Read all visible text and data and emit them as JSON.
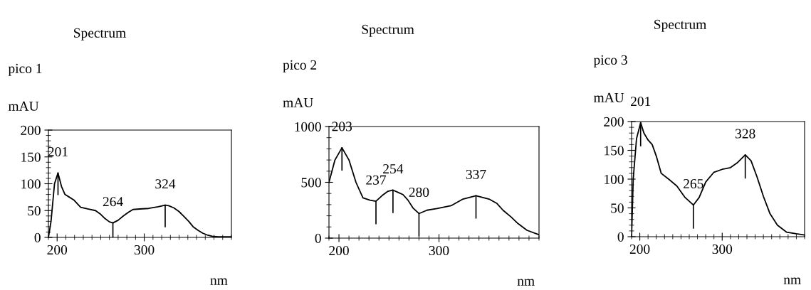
{
  "chart_data": [
    {
      "type": "line",
      "title": "Spectrum",
      "subtitle": "pico 1",
      "ylabel": "mAU",
      "xlabel": "nm",
      "xlim": [
        190,
        400
      ],
      "xticks": [
        200,
        300
      ],
      "ylim": [
        0,
        200
      ],
      "yticks": [
        0,
        50,
        100,
        150,
        200
      ],
      "grid": false,
      "legend": false,
      "marker": "none",
      "line_style": "solid",
      "series": [
        {
          "color": "#000000",
          "x": [
            190,
            193,
            197,
            201,
            205,
            209,
            214,
            219,
            227,
            235,
            244,
            250,
            255,
            260,
            264,
            270,
            276,
            282,
            287,
            295,
            305,
            316,
            324,
            328,
            334,
            340,
            345,
            351,
            356,
            362,
            367,
            373,
            378,
            385,
            400
          ],
          "values": [
            0,
            30,
            100,
            120,
            95,
            80,
            75,
            70,
            56,
            53,
            50,
            43,
            35,
            29,
            27,
            32,
            40,
            47,
            52,
            53,
            54,
            57,
            60,
            59,
            55,
            48,
            40,
            30,
            20,
            13,
            8,
            4,
            2,
            1,
            1
          ]
        }
      ],
      "annotations": [
        {
          "text": "201",
          "x": 201,
          "y": 120
        },
        {
          "text": "264",
          "x": 264,
          "y": 27
        },
        {
          "text": "324",
          "x": 324,
          "y": 60
        }
      ]
    },
    {
      "type": "line",
      "title": "Spectrum",
      "subtitle": "pico 2",
      "ylabel": "mAU",
      "xlabel": "nm",
      "xlim": [
        190,
        400
      ],
      "xticks": [
        200,
        300
      ],
      "ylim": [
        0,
        1000
      ],
      "yticks": [
        0,
        500,
        1000
      ],
      "grid": false,
      "legend": false,
      "marker": "none",
      "line_style": "solid",
      "series": [
        {
          "color": "#000000",
          "x": [
            190,
            196,
            203,
            210,
            217,
            224,
            231,
            237,
            243,
            249,
            254,
            259,
            264,
            269,
            274,
            280,
            288,
            298,
            312,
            324,
            337,
            350,
            358,
            364,
            372,
            379,
            388,
            400
          ],
          "values": [
            500,
            700,
            810,
            700,
            500,
            360,
            340,
            330,
            380,
            420,
            430,
            410,
            390,
            340,
            270,
            220,
            250,
            265,
            290,
            350,
            380,
            350,
            310,
            250,
            190,
            130,
            70,
            30
          ]
        }
      ],
      "annotations": [
        {
          "text": "203",
          "x": 203,
          "y": 810
        },
        {
          "text": "237",
          "x": 237,
          "y": 330
        },
        {
          "text": "254",
          "x": 254,
          "y": 430
        },
        {
          "text": "280",
          "x": 280,
          "y": 220
        },
        {
          "text": "337",
          "x": 337,
          "y": 380
        }
      ]
    },
    {
      "type": "line",
      "title": "Spectrum",
      "subtitle": "pico 3",
      "ylabel": "mAU",
      "xlabel": "nm",
      "xlim": [
        190,
        400
      ],
      "xticks": [
        200,
        300
      ],
      "ylim": [
        0,
        200
      ],
      "yticks": [
        0,
        50,
        100,
        150,
        200
      ],
      "grid": false,
      "legend": false,
      "marker": "none",
      "line_style": "solid",
      "series": [
        {
          "color": "#000000",
          "x": [
            190,
            192,
            196,
            201,
            205,
            210,
            215,
            220,
            226,
            235,
            245,
            255,
            265,
            272,
            280,
            290,
            300,
            310,
            318,
            328,
            335,
            342,
            350,
            358,
            367,
            378,
            390,
            400
          ],
          "values": [
            0,
            100,
            170,
            198,
            180,
            168,
            160,
            140,
            110,
            100,
            88,
            68,
            55,
            68,
            95,
            112,
            117,
            120,
            128,
            142,
            132,
            105,
            70,
            40,
            20,
            8,
            5,
            3
          ]
        }
      ],
      "annotations": [
        {
          "text": "201",
          "x": 201,
          "y": 198
        },
        {
          "text": "265",
          "x": 265,
          "y": 55
        },
        {
          "text": "328",
          "x": 328,
          "y": 142
        }
      ]
    }
  ]
}
